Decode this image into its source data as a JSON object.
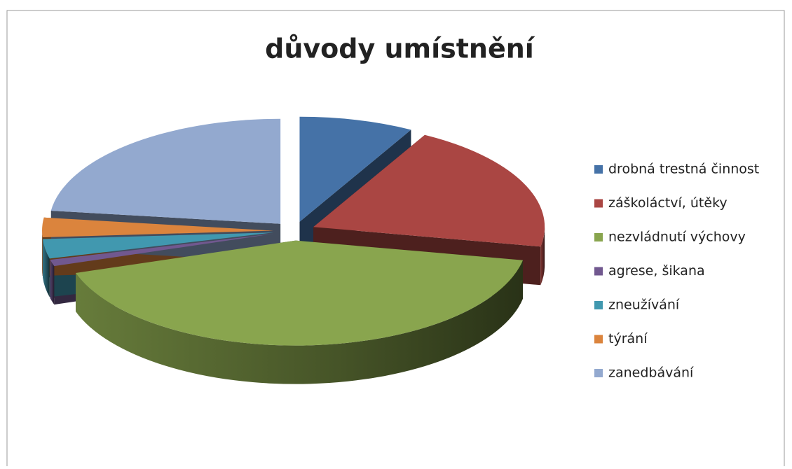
{
  "chart_data": {
    "type": "pie3d",
    "title": "důvody umístnění",
    "categories": [
      "drobná trestná činnost",
      "záškoláctví, útěky",
      "nezvládnutí výchovy",
      "agrese, šikana",
      "zneužívání",
      "týrání",
      "zanedbávání"
    ],
    "values": [
      8,
      20,
      42,
      1,
      3,
      3,
      23
    ],
    "colors": [
      "#4572a7",
      "#aa4643",
      "#89a54e",
      "#71588f",
      "#4198af",
      "#db843d",
      "#93a9cf"
    ],
    "legend": "right"
  }
}
